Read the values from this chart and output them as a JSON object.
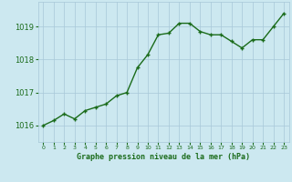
{
  "x": [
    0,
    1,
    2,
    3,
    4,
    5,
    6,
    7,
    8,
    9,
    10,
    11,
    12,
    13,
    14,
    15,
    16,
    17,
    18,
    19,
    20,
    21,
    22,
    23
  ],
  "y": [
    1016.0,
    1016.15,
    1016.35,
    1016.2,
    1016.45,
    1016.55,
    1016.65,
    1016.9,
    1017.0,
    1017.75,
    1018.15,
    1018.75,
    1018.8,
    1019.1,
    1019.1,
    1018.85,
    1018.75,
    1018.75,
    1018.55,
    1018.35,
    1018.6,
    1018.6,
    1019.0,
    1019.4
  ],
  "line_color": "#1a6b1a",
  "marker_color": "#1a6b1a",
  "bg_color": "#cce8f0",
  "grid_color": "#a8c8d8",
  "xlabel": "Graphe pression niveau de la mer (hPa)",
  "xlabel_color": "#1a6b1a",
  "tick_color": "#1a6b1a",
  "ylim": [
    1015.5,
    1019.75
  ],
  "yticks": [
    1016,
    1017,
    1018,
    1019
  ],
  "xtick_labels": [
    "0",
    "1",
    "2",
    "3",
    "4",
    "5",
    "6",
    "7",
    "8",
    "9",
    "10",
    "11",
    "12",
    "13",
    "14",
    "15",
    "16",
    "17",
    "18",
    "19",
    "20",
    "21",
    "22",
    "23"
  ],
  "marker_size": 2.5,
  "line_width": 1.0,
  "figsize": [
    3.2,
    2.0
  ],
  "dpi": 100
}
